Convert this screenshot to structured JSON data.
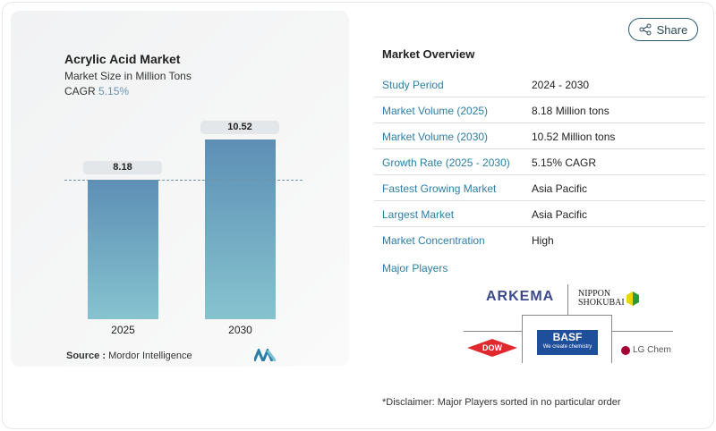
{
  "chart": {
    "title": "Acrylic Acid Market",
    "subtitle": "Market Size in Million Tons",
    "cagr_label": "CAGR",
    "cagr_value": "5.15%",
    "source_label": "Source :",
    "source_value": "Mordor Intelligence"
  },
  "chart_data": {
    "type": "bar",
    "title": "Acrylic Acid Market",
    "ylabel": "Market Size in Million Tons",
    "categories": [
      "2025",
      "2030"
    ],
    "values": [
      8.18,
      10.52
    ],
    "value_labels": [
      "8.18",
      "10.52"
    ]
  },
  "share_label": "Share",
  "overview": {
    "title": "Market Overview",
    "rows": [
      {
        "label": "Study Period",
        "value": "2024 - 2030"
      },
      {
        "label": "Market Volume (2025)",
        "value": "8.18 Million tons"
      },
      {
        "label": "Market Volume (2030)",
        "value": "10.52 Million tons"
      },
      {
        "label": "Growth Rate (2025 - 2030)",
        "value": "5.15% CAGR"
      },
      {
        "label": "Fastest Growing Market",
        "value": "Asia Pacific"
      },
      {
        "label": "Largest Market",
        "value": "Asia Pacific"
      },
      {
        "label": "Market Concentration",
        "value": "High"
      }
    ],
    "major_players_label": "Major Players",
    "players": [
      "ARKEMA",
      "NIPPON SHOKUBAI",
      "DOW",
      "BASF",
      "LG Chem"
    ],
    "basf_tagline": "We create chemistry"
  },
  "disclaimer": "*Disclaimer: Major Players sorted in no particular order"
}
